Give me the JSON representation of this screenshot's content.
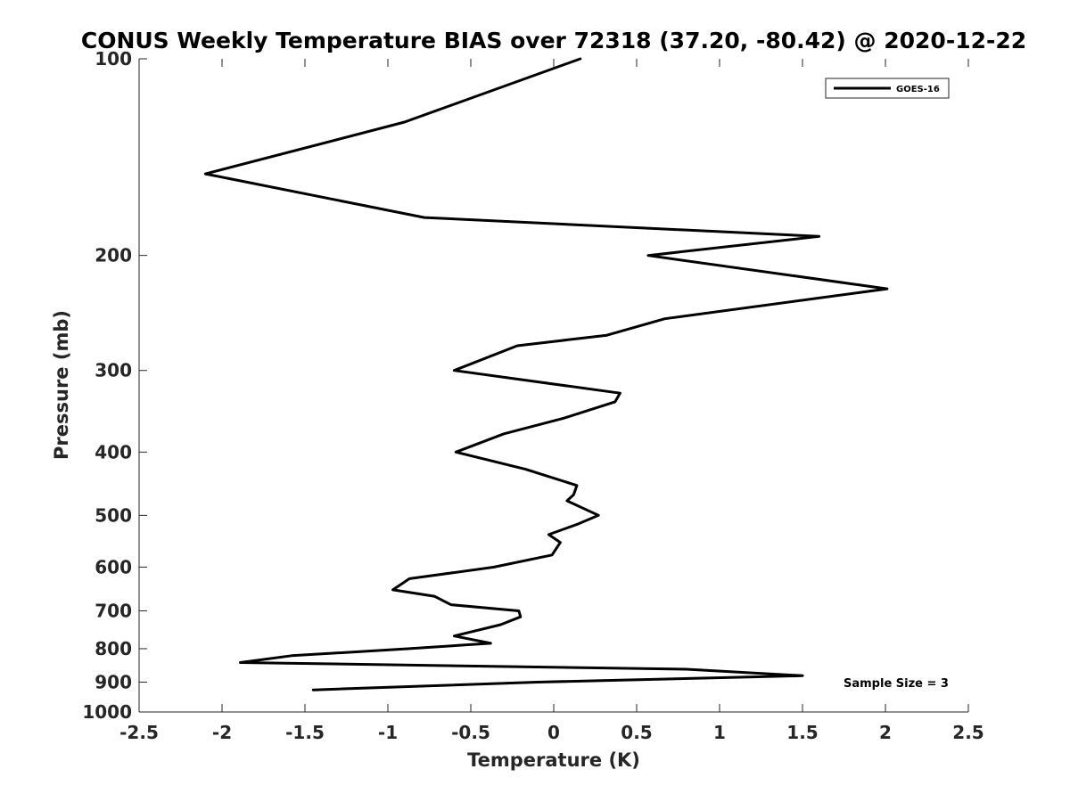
{
  "chart_data": {
    "type": "line",
    "title": "CONUS Weekly Temperature BIAS over 72318 (37.20, -80.42) @ 2020-12-22",
    "xlabel": "Temperature (K)",
    "ylabel": "Pressure (mb)",
    "xlim": [
      -2.5,
      2.5
    ],
    "ylim": [
      100,
      1000
    ],
    "y_scale": "log",
    "y_reversed": true,
    "x_ticks": [
      -2.5,
      -2,
      -1.5,
      -1,
      -0.5,
      0,
      0.5,
      1,
      1.5,
      2,
      2.5
    ],
    "x_tick_labels": [
      "-2.5",
      "-2",
      "-1.5",
      "-1",
      "-0.5",
      "0",
      "0.5",
      "1",
      "1.5",
      "2",
      "2.5"
    ],
    "y_ticks": [
      100,
      200,
      300,
      400,
      500,
      600,
      700,
      800,
      900,
      1000
    ],
    "y_tick_labels": [
      "100",
      "200",
      "300",
      "400",
      "500",
      "600",
      "700",
      "800",
      "900",
      "1000"
    ],
    "grid": false,
    "legend": {
      "position": "top-right"
    },
    "annotation": "Sample Size = 3",
    "series": [
      {
        "name": "GOES-16",
        "color": "#000000",
        "points": [
          {
            "x": 0.16,
            "p": 100
          },
          {
            "x": -0.9,
            "p": 125
          },
          {
            "x": -2.1,
            "p": 150
          },
          {
            "x": -0.78,
            "p": 175
          },
          {
            "x": 1.6,
            "p": 187
          },
          {
            "x": 0.57,
            "p": 200
          },
          {
            "x": 2.01,
            "p": 225
          },
          {
            "x": 0.67,
            "p": 250
          },
          {
            "x": 0.32,
            "p": 265
          },
          {
            "x": -0.22,
            "p": 275
          },
          {
            "x": -0.6,
            "p": 300
          },
          {
            "x": 0.4,
            "p": 325
          },
          {
            "x": 0.37,
            "p": 335
          },
          {
            "x": 0.06,
            "p": 355
          },
          {
            "x": -0.3,
            "p": 375
          },
          {
            "x": -0.59,
            "p": 400
          },
          {
            "x": -0.17,
            "p": 425
          },
          {
            "x": 0.14,
            "p": 450
          },
          {
            "x": 0.12,
            "p": 465
          },
          {
            "x": 0.08,
            "p": 475
          },
          {
            "x": 0.27,
            "p": 500
          },
          {
            "x": 0.15,
            "p": 515
          },
          {
            "x": -0.03,
            "p": 535
          },
          {
            "x": 0.04,
            "p": 550
          },
          {
            "x": -0.01,
            "p": 575
          },
          {
            "x": -0.36,
            "p": 600
          },
          {
            "x": -0.87,
            "p": 625
          },
          {
            "x": -0.97,
            "p": 650
          },
          {
            "x": -0.72,
            "p": 665
          },
          {
            "x": -0.62,
            "p": 685
          },
          {
            "x": -0.21,
            "p": 700
          },
          {
            "x": -0.2,
            "p": 715
          },
          {
            "x": -0.32,
            "p": 735
          },
          {
            "x": -0.6,
            "p": 765
          },
          {
            "x": -0.38,
            "p": 785
          },
          {
            "x": -0.88,
            "p": 800
          },
          {
            "x": -1.58,
            "p": 820
          },
          {
            "x": -1.89,
            "p": 840
          },
          {
            "x": 0.8,
            "p": 860
          },
          {
            "x": 1.5,
            "p": 880
          },
          {
            "x": -0.1,
            "p": 900
          },
          {
            "x": -1.45,
            "p": 925
          }
        ]
      }
    ]
  }
}
